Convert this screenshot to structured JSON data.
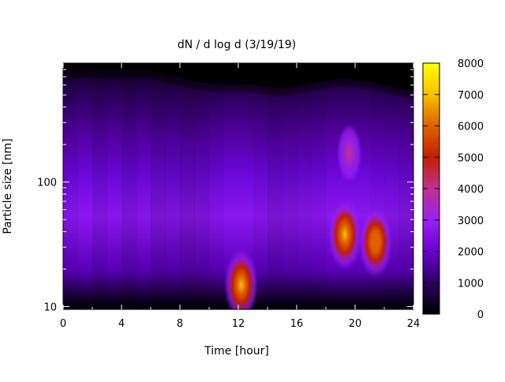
{
  "chart_data": {
    "type": "heatmap",
    "title": "dN / d log d (3/19/19)",
    "xlabel": "Time [hour]",
    "ylabel": "Particle size [nm]",
    "xlim": [
      0,
      24
    ],
    "ylim": [
      9.5,
      900
    ],
    "y_scale": "log",
    "x_ticks": [
      0,
      4,
      8,
      12,
      16,
      20,
      24
    ],
    "x_tick_labels": [
      "0",
      "4",
      "8",
      "12",
      "16",
      "20",
      "24"
    ],
    "y_ticks": [
      10,
      100
    ],
    "y_tick_labels": [
      "10",
      "100"
    ],
    "colorbar": {
      "range": [
        0,
        8000
      ],
      "ticks": [
        0,
        1000,
        2000,
        3000,
        4000,
        5000,
        6000,
        7000,
        8000
      ],
      "tick_labels": [
        "0",
        "1000",
        "2000",
        "3000",
        "4000",
        "5000",
        "6000",
        "7000",
        "8000"
      ],
      "palette": [
        "#000000",
        "#2a0060",
        "#6a00d0",
        "#9a20f0",
        "#c03090",
        "#c02000",
        "#e06000",
        "#f8c000",
        "#ffff00"
      ]
    },
    "features": [
      {
        "time_hour": 12.2,
        "size_nm": 15,
        "peak": 7200
      },
      {
        "time_hour": 19.3,
        "size_nm": 38,
        "peak": 6200
      },
      {
        "time_hour": 21.4,
        "size_nm": 33,
        "peak": 5000
      },
      {
        "time_hour": 19.6,
        "size_nm": 170,
        "peak": 3200
      }
    ],
    "upper_cutoff_nm": [
      {
        "time_hour": 0,
        "size_nm": 800
      },
      {
        "time_hour": 6,
        "size_nm": 780
      },
      {
        "time_hour": 9,
        "size_nm": 640
      },
      {
        "time_hour": 11,
        "size_nm": 600
      },
      {
        "time_hour": 13,
        "size_nm": 600
      },
      {
        "time_hour": 15,
        "size_nm": 560
      },
      {
        "time_hour": 17,
        "size_nm": 620
      },
      {
        "time_hour": 19,
        "size_nm": 680
      },
      {
        "time_hour": 21,
        "size_nm": 640
      },
      {
        "time_hour": 23,
        "size_nm": 560
      },
      {
        "time_hour": 24,
        "size_nm": 540
      }
    ]
  }
}
